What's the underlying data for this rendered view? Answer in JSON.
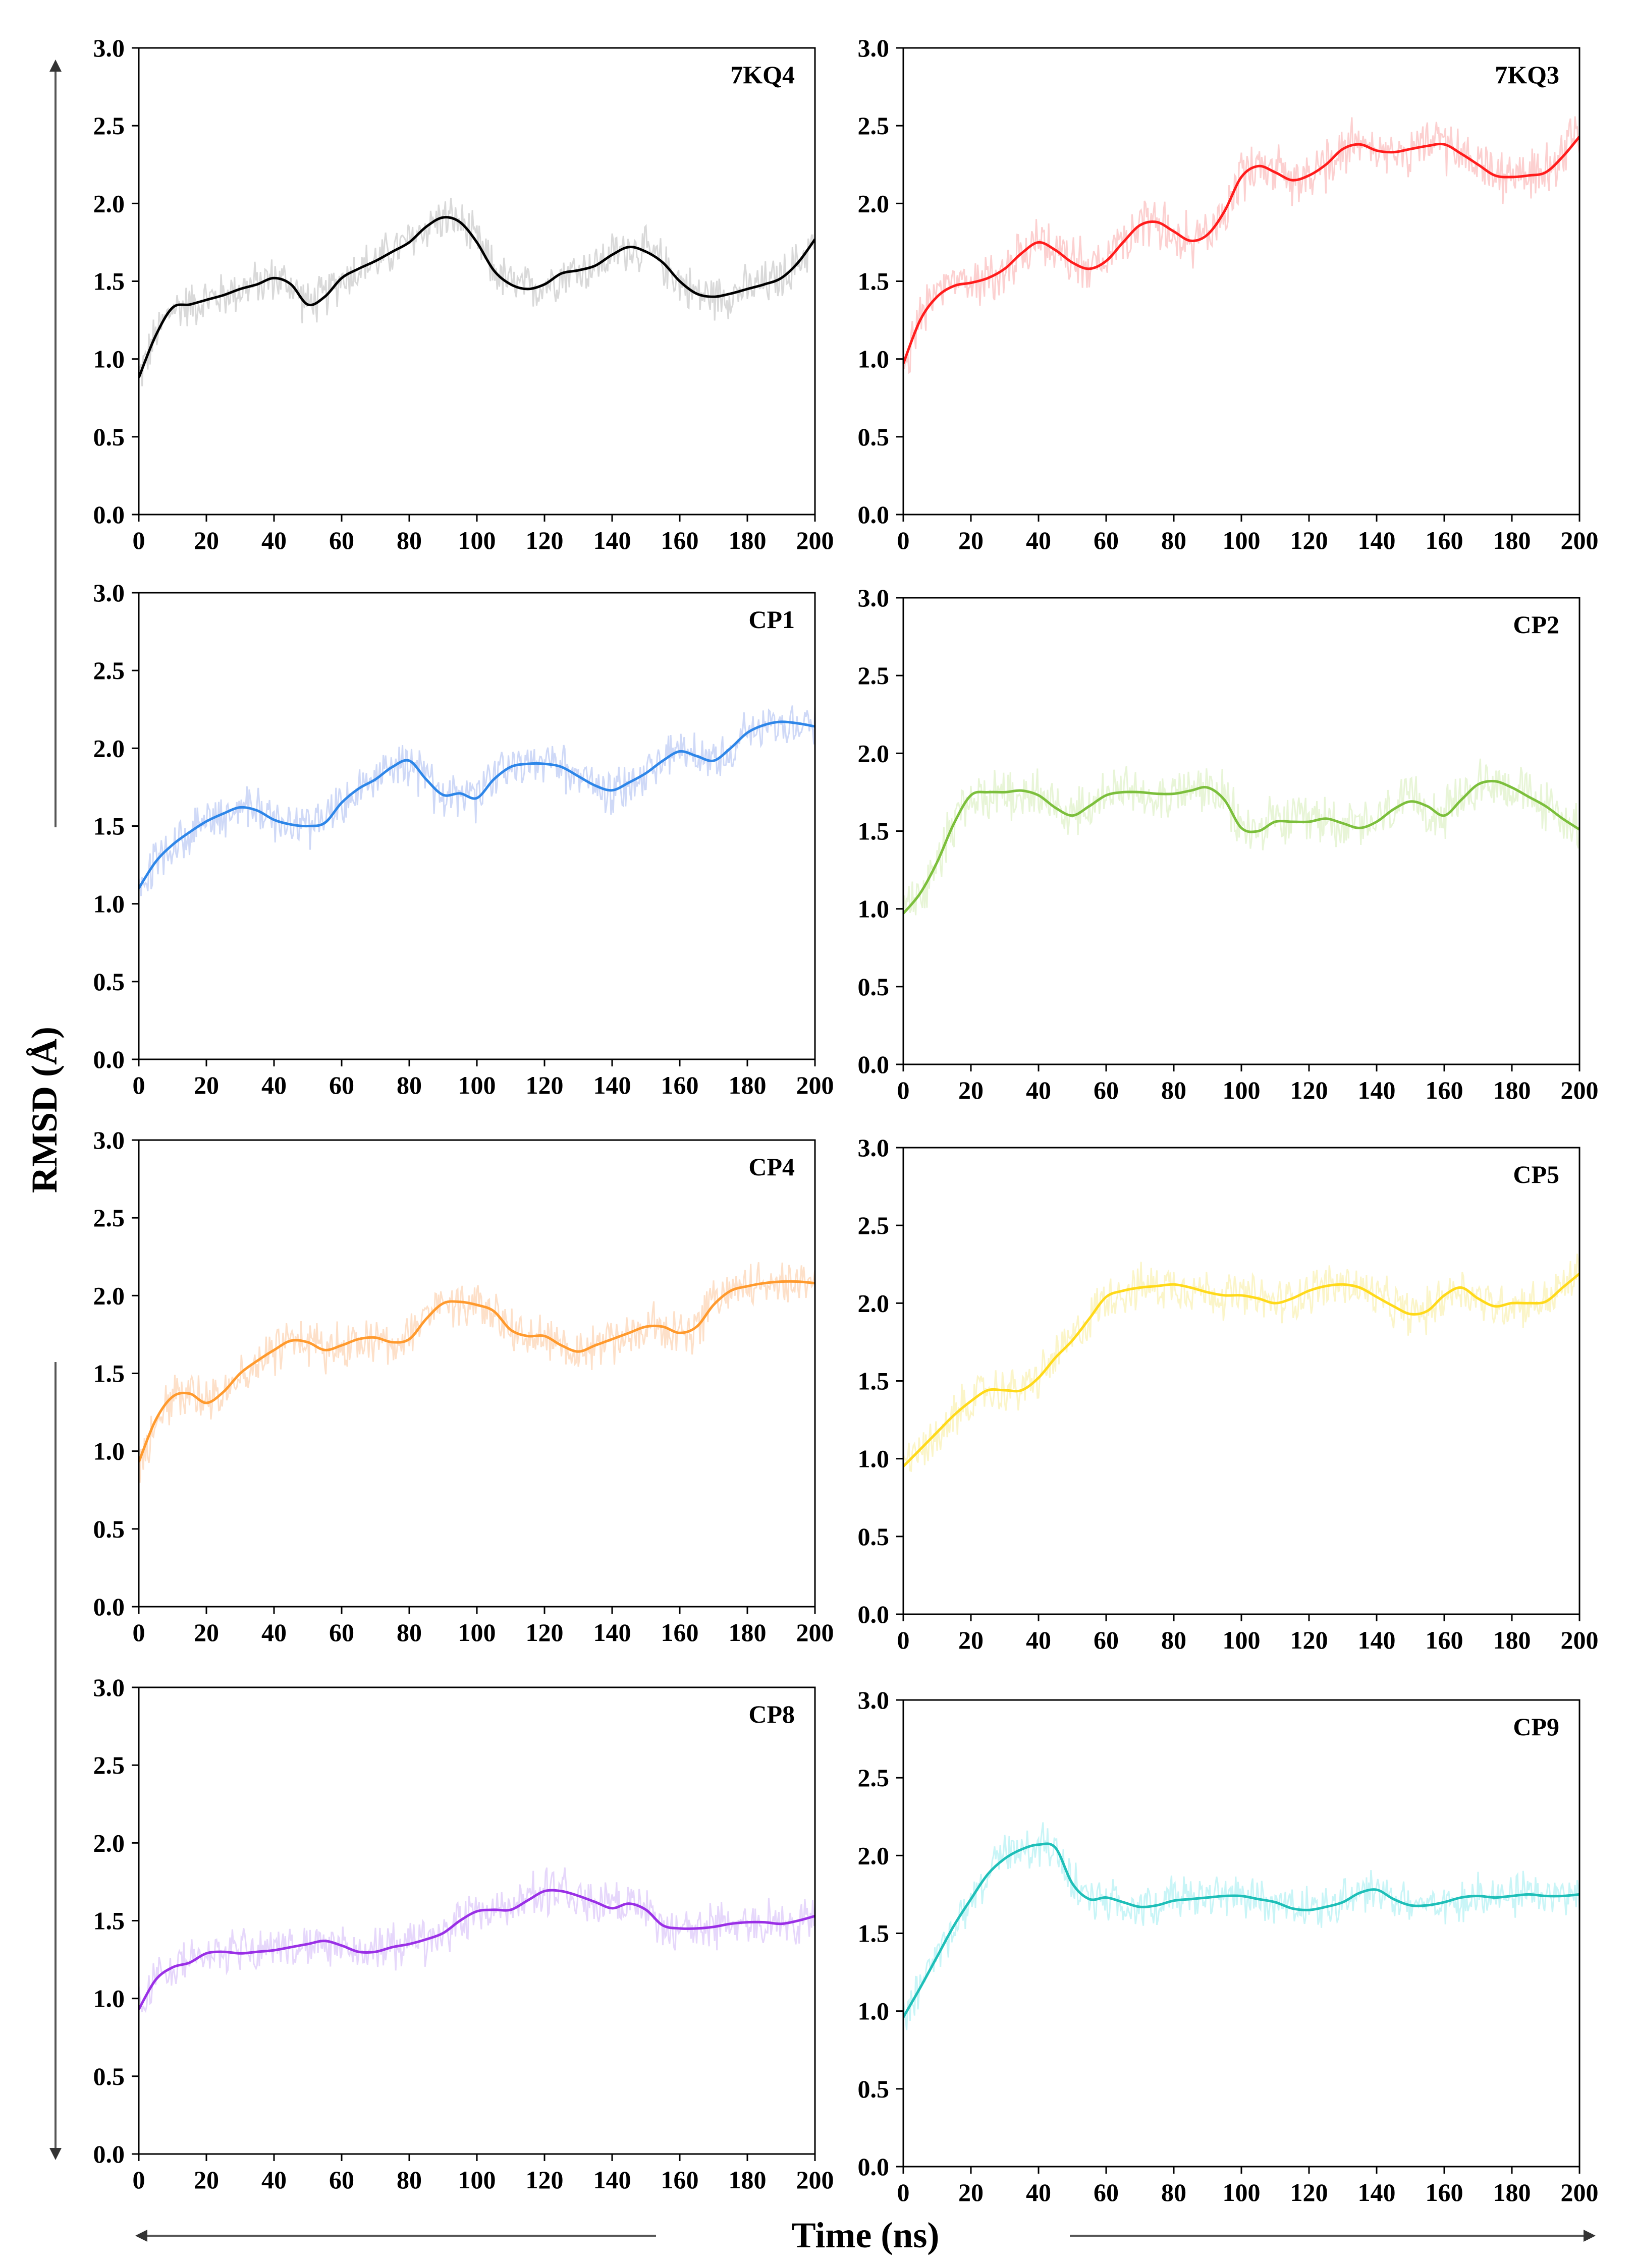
{
  "figure": {
    "ylabel": "RMSD (Å)",
    "xlabel": "Time (ns)"
  },
  "chart_data": [
    {
      "type": "line",
      "title": "7KQ4",
      "color": "#000000",
      "noise_color": "#d9d9d9",
      "xlim": [
        0,
        200
      ],
      "ylim": [
        0,
        3
      ],
      "x_ticks": [
        "0",
        "20",
        "40",
        "60",
        "80",
        "100",
        "120",
        "140",
        "160",
        "180",
        "200"
      ],
      "y_ticks": [
        "0.0",
        "0.5",
        "1.0",
        "1.5",
        "2.0",
        "2.5",
        "3.0"
      ],
      "noise_amplitude": 0.18,
      "x": [
        0,
        5,
        10,
        15,
        20,
        25,
        30,
        35,
        40,
        45,
        50,
        55,
        60,
        65,
        70,
        75,
        80,
        85,
        90,
        95,
        100,
        105,
        110,
        115,
        120,
        125,
        130,
        135,
        140,
        145,
        150,
        155,
        160,
        165,
        170,
        175,
        180,
        185,
        190,
        195,
        200
      ],
      "values": [
        0.88,
        1.15,
        1.33,
        1.35,
        1.38,
        1.41,
        1.45,
        1.48,
        1.52,
        1.48,
        1.35,
        1.4,
        1.52,
        1.58,
        1.63,
        1.69,
        1.75,
        1.85,
        1.91,
        1.88,
        1.75,
        1.57,
        1.48,
        1.45,
        1.48,
        1.55,
        1.57,
        1.6,
        1.67,
        1.72,
        1.69,
        1.62,
        1.5,
        1.42,
        1.4,
        1.42,
        1.45,
        1.48,
        1.52,
        1.62,
        1.77
      ]
    },
    {
      "type": "line",
      "title": "7KQ3",
      "color": "#ff1c1c",
      "noise_color": "#fcd0d0",
      "xlim": [
        0,
        200
      ],
      "ylim": [
        0,
        3
      ],
      "x_ticks": [
        "0",
        "20",
        "40",
        "60",
        "80",
        "100",
        "120",
        "140",
        "160",
        "180",
        "200"
      ],
      "y_ticks": [
        "0.0",
        "0.5",
        "1.0",
        "1.5",
        "2.0",
        "2.5",
        "3.0"
      ],
      "noise_amplitude": 0.2,
      "x": [
        0,
        5,
        10,
        15,
        20,
        25,
        30,
        35,
        40,
        45,
        50,
        55,
        60,
        65,
        70,
        75,
        80,
        85,
        90,
        95,
        100,
        105,
        110,
        115,
        120,
        125,
        130,
        135,
        140,
        145,
        150,
        155,
        160,
        165,
        170,
        175,
        180,
        185,
        190,
        195,
        200
      ],
      "values": [
        0.97,
        1.25,
        1.4,
        1.47,
        1.49,
        1.52,
        1.58,
        1.68,
        1.75,
        1.7,
        1.62,
        1.58,
        1.63,
        1.75,
        1.86,
        1.88,
        1.82,
        1.76,
        1.8,
        1.95,
        2.17,
        2.24,
        2.2,
        2.15,
        2.18,
        2.25,
        2.35,
        2.38,
        2.34,
        2.33,
        2.35,
        2.37,
        2.38,
        2.32,
        2.25,
        2.18,
        2.17,
        2.18,
        2.2,
        2.3,
        2.43
      ]
    },
    {
      "type": "line",
      "title": "CP1",
      "color": "#2e86e8",
      "noise_color": "#cfd9f7",
      "xlim": [
        0,
        200
      ],
      "ylim": [
        0,
        3
      ],
      "x_ticks": [
        "0",
        "20",
        "40",
        "60",
        "80",
        "100",
        "120",
        "140",
        "160",
        "180",
        "200"
      ],
      "y_ticks": [
        "0.0",
        "0.5",
        "1.0",
        "1.5",
        "2.0",
        "2.5",
        "3.0"
      ],
      "noise_amplitude": 0.18,
      "x": [
        0,
        5,
        10,
        15,
        20,
        25,
        30,
        35,
        40,
        45,
        50,
        55,
        60,
        65,
        70,
        75,
        80,
        85,
        90,
        95,
        100,
        105,
        110,
        115,
        120,
        125,
        130,
        135,
        140,
        145,
        150,
        155,
        160,
        165,
        170,
        175,
        180,
        185,
        190,
        195,
        200
      ],
      "values": [
        1.1,
        1.27,
        1.38,
        1.46,
        1.53,
        1.58,
        1.62,
        1.6,
        1.54,
        1.51,
        1.5,
        1.52,
        1.65,
        1.74,
        1.8,
        1.88,
        1.92,
        1.8,
        1.7,
        1.71,
        1.68,
        1.8,
        1.88,
        1.9,
        1.9,
        1.88,
        1.82,
        1.76,
        1.73,
        1.78,
        1.84,
        1.92,
        1.98,
        1.95,
        1.92,
        2.0,
        2.1,
        2.15,
        2.17,
        2.16,
        2.14
      ]
    },
    {
      "type": "line",
      "title": "CP2",
      "color": "#7cbf3c",
      "noise_color": "#e8f5d7",
      "xlim": [
        0,
        200
      ],
      "ylim": [
        0,
        3
      ],
      "x_ticks": [
        "0",
        "20",
        "40",
        "60",
        "80",
        "100",
        "120",
        "140",
        "160",
        "180",
        "200"
      ],
      "y_ticks": [
        "0.0",
        "0.5",
        "1.0",
        "1.5",
        "2.0",
        "2.5",
        "3.0"
      ],
      "noise_amplitude": 0.2,
      "x": [
        0,
        5,
        10,
        15,
        20,
        25,
        30,
        35,
        40,
        45,
        50,
        55,
        60,
        65,
        70,
        75,
        80,
        85,
        90,
        95,
        100,
        105,
        110,
        115,
        120,
        125,
        130,
        135,
        140,
        145,
        150,
        155,
        160,
        165,
        170,
        175,
        180,
        185,
        190,
        195,
        200
      ],
      "values": [
        0.97,
        1.1,
        1.3,
        1.55,
        1.73,
        1.75,
        1.75,
        1.76,
        1.73,
        1.65,
        1.6,
        1.66,
        1.73,
        1.75,
        1.75,
        1.74,
        1.74,
        1.76,
        1.78,
        1.7,
        1.52,
        1.5,
        1.56,
        1.56,
        1.56,
        1.58,
        1.55,
        1.52,
        1.56,
        1.64,
        1.69,
        1.66,
        1.6,
        1.7,
        1.8,
        1.82,
        1.78,
        1.72,
        1.66,
        1.58,
        1.51
      ]
    },
    {
      "type": "line",
      "title": "CP4",
      "color": "#ff9a2e",
      "noise_color": "#fde0c9",
      "xlim": [
        0,
        200
      ],
      "ylim": [
        0,
        3
      ],
      "x_ticks": [
        "0",
        "20",
        "40",
        "60",
        "80",
        "100",
        "120",
        "140",
        "160",
        "180",
        "200"
      ],
      "y_ticks": [
        "0.0",
        "0.5",
        "1.0",
        "1.5",
        "2.0",
        "2.5",
        "3.0"
      ],
      "noise_amplitude": 0.18,
      "x": [
        0,
        5,
        10,
        15,
        20,
        25,
        30,
        35,
        40,
        45,
        50,
        55,
        60,
        65,
        70,
        75,
        80,
        85,
        90,
        95,
        100,
        105,
        110,
        115,
        120,
        125,
        130,
        135,
        140,
        145,
        150,
        155,
        160,
        165,
        170,
        175,
        180,
        185,
        190,
        195,
        200
      ],
      "values": [
        0.93,
        1.2,
        1.35,
        1.37,
        1.31,
        1.38,
        1.5,
        1.58,
        1.65,
        1.71,
        1.7,
        1.65,
        1.68,
        1.72,
        1.73,
        1.7,
        1.72,
        1.85,
        1.95,
        1.96,
        1.94,
        1.9,
        1.78,
        1.74,
        1.74,
        1.68,
        1.64,
        1.68,
        1.72,
        1.76,
        1.8,
        1.8,
        1.76,
        1.8,
        1.94,
        2.03,
        2.06,
        2.08,
        2.09,
        2.09,
        2.08
      ]
    },
    {
      "type": "line",
      "title": "CP5",
      "color": "#ffd91a",
      "noise_color": "#fbf5c9",
      "xlim": [
        0,
        200
      ],
      "ylim": [
        0,
        3
      ],
      "x_ticks": [
        "0",
        "20",
        "40",
        "60",
        "80",
        "100",
        "120",
        "140",
        "160",
        "180",
        "200"
      ],
      "y_ticks": [
        "0.0",
        "0.5",
        "1.0",
        "1.5",
        "2.0",
        "2.5",
        "3.0"
      ],
      "noise_amplitude": 0.18,
      "x": [
        0,
        5,
        10,
        15,
        20,
        25,
        30,
        35,
        40,
        45,
        50,
        55,
        60,
        65,
        70,
        75,
        80,
        85,
        90,
        95,
        100,
        105,
        110,
        115,
        120,
        125,
        130,
        135,
        140,
        145,
        150,
        155,
        160,
        165,
        170,
        175,
        180,
        185,
        190,
        195,
        200
      ],
      "values": [
        0.95,
        1.06,
        1.17,
        1.28,
        1.37,
        1.44,
        1.44,
        1.44,
        1.52,
        1.65,
        1.76,
        1.9,
        2.04,
        2.08,
        2.1,
        2.11,
        2.12,
        2.1,
        2.07,
        2.05,
        2.05,
        2.03,
        2.0,
        2.03,
        2.08,
        2.11,
        2.12,
        2.1,
        2.04,
        1.98,
        1.93,
        1.95,
        2.05,
        2.1,
        2.03,
        1.98,
        2.0,
        2.0,
        2.01,
        2.1,
        2.19
      ]
    },
    {
      "type": "line",
      "title": "CP8",
      "color": "#9a30e6",
      "noise_color": "#e6d7fb",
      "xlim": [
        0,
        200
      ],
      "ylim": [
        0,
        3
      ],
      "x_ticks": [
        "0",
        "20",
        "40",
        "60",
        "80",
        "100",
        "120",
        "140",
        "160",
        "180",
        "200"
      ],
      "y_ticks": [
        "0.0",
        "0.5",
        "1.0",
        "1.5",
        "2.0",
        "2.5",
        "3.0"
      ],
      "noise_amplitude": 0.18,
      "x": [
        0,
        5,
        10,
        15,
        20,
        25,
        30,
        35,
        40,
        45,
        50,
        55,
        60,
        65,
        70,
        75,
        80,
        85,
        90,
        95,
        100,
        105,
        110,
        115,
        120,
        125,
        130,
        135,
        140,
        145,
        150,
        155,
        160,
        165,
        170,
        175,
        180,
        185,
        190,
        195,
        200
      ],
      "values": [
        0.93,
        1.12,
        1.2,
        1.23,
        1.29,
        1.3,
        1.29,
        1.3,
        1.31,
        1.33,
        1.35,
        1.37,
        1.34,
        1.3,
        1.3,
        1.33,
        1.35,
        1.38,
        1.42,
        1.5,
        1.56,
        1.57,
        1.57,
        1.63,
        1.69,
        1.69,
        1.66,
        1.62,
        1.58,
        1.61,
        1.57,
        1.47,
        1.45,
        1.45,
        1.46,
        1.48,
        1.49,
        1.49,
        1.48,
        1.5,
        1.53
      ]
    },
    {
      "type": "line",
      "title": "CP9",
      "color": "#1fbfb8",
      "noise_color": "#c9f5f7",
      "xlim": [
        0,
        200
      ],
      "ylim": [
        0,
        3
      ],
      "x_ticks": [
        "0",
        "20",
        "40",
        "60",
        "80",
        "100",
        "120",
        "140",
        "160",
        "180",
        "200"
      ],
      "y_ticks": [
        "0.0",
        "0.5",
        "1.0",
        "1.5",
        "2.0",
        "2.5",
        "3.0"
      ],
      "noise_amplitude": 0.17,
      "x": [
        0,
        5,
        10,
        15,
        20,
        25,
        30,
        35,
        40,
        45,
        50,
        55,
        60,
        65,
        70,
        75,
        80,
        85,
        90,
        95,
        100,
        105,
        110,
        115,
        120,
        125,
        130,
        135,
        140,
        145,
        150,
        155,
        160,
        165,
        170,
        175,
        180,
        185,
        190,
        195,
        200
      ],
      "values": [
        0.96,
        1.15,
        1.35,
        1.55,
        1.72,
        1.88,
        1.98,
        2.04,
        2.07,
        2.05,
        1.82,
        1.72,
        1.73,
        1.7,
        1.67,
        1.68,
        1.71,
        1.72,
        1.73,
        1.74,
        1.74,
        1.72,
        1.7,
        1.66,
        1.65,
        1.67,
        1.7,
        1.76,
        1.78,
        1.72,
        1.68,
        1.68,
        1.7,
        1.73,
        1.74,
        1.73,
        1.74,
        1.75,
        1.74,
        1.74,
        1.75
      ]
    }
  ]
}
